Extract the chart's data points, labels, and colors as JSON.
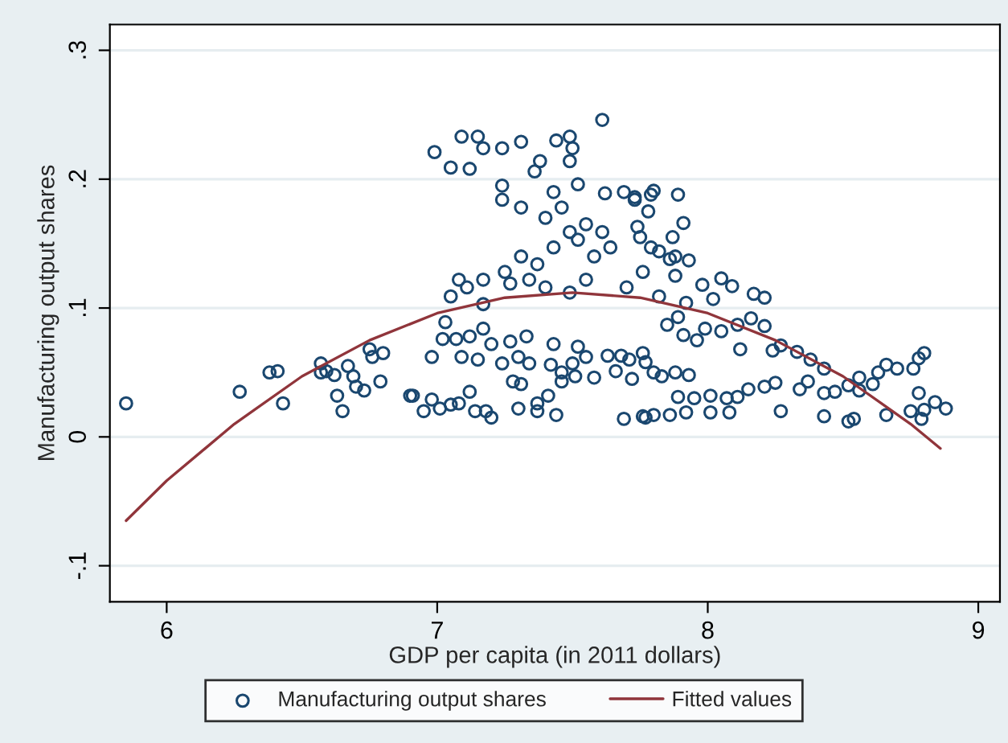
{
  "chart_data": {
    "type": "scatter",
    "xlabel": "GDP per capita (in 2011 dollars)",
    "ylabel": "Manufacturing output shares",
    "xlim": [
      5.79,
      9.08
    ],
    "xticks": [
      6,
      7,
      8,
      9
    ],
    "ylim": [
      -0.128,
      0.32
    ],
    "yticks": [
      {
        "value": -0.1,
        "label": "-.1"
      },
      0,
      {
        "value": 0.1,
        "label": ".1"
      },
      {
        "value": 0.2,
        "label": ".2"
      },
      {
        "value": 0.3,
        "label": ".3"
      }
    ],
    "grid": "y",
    "legend": "bottom",
    "marker": "circle",
    "series": [
      {
        "name": "Manufacturing output shares",
        "type": "scatter",
        "color": "#1a476f",
        "x": [
          5.85,
          6.27,
          6.38,
          6.41,
          6.43,
          6.57,
          6.57,
          6.59,
          6.62,
          6.63,
          6.65,
          6.67,
          6.69,
          6.7,
          6.73,
          6.75,
          6.76,
          6.79,
          6.8,
          6.9,
          6.99,
          7.09,
          7.15,
          7.17,
          7.05,
          7.12,
          7.24,
          7.31,
          7.38,
          7.44,
          7.49,
          7.61,
          7.5,
          7.24,
          7.24,
          7.36,
          7.49,
          7.62,
          7.69,
          7.73,
          7.79,
          7.4,
          7.46,
          7.49,
          7.52,
          7.55,
          7.58,
          7.61,
          7.64,
          7.43,
          7.37,
          7.31,
          7.34,
          7.25,
          7.17,
          7.11,
          7.08,
          7.05,
          7.17,
          7.27,
          7.4,
          7.49,
          7.55,
          7.7,
          7.76,
          7.82,
          7.88,
          7.74,
          7.79,
          7.31,
          7.43,
          7.52,
          7.73,
          7.8,
          7.89,
          7.78,
          7.91,
          7.75,
          7.87,
          7.82,
          7.86,
          7.93,
          7.88,
          7.98,
          8.05,
          8.09,
          8.17,
          8.21,
          8.02,
          7.92,
          7.89,
          7.85,
          7.91,
          7.99,
          8.05,
          8.11,
          8.16,
          8.21,
          7.96,
          8.12,
          8.24,
          8.27,
          8.33,
          8.38,
          8.43,
          7.76,
          7.77,
          7.71,
          7.72,
          7.8,
          7.83,
          7.88,
          7.93,
          7.89,
          7.95,
          8.01,
          8.07,
          8.11,
          8.15,
          8.21,
          8.25,
          8.34,
          8.37,
          8.43,
          8.47,
          8.52,
          8.56,
          8.56,
          8.61,
          8.63,
          8.66,
          8.7,
          8.76,
          8.78,
          8.8,
          8.78,
          8.84,
          8.88,
          8.75,
          8.8,
          8.79,
          8.66,
          8.54,
          8.52,
          8.43,
          8.27,
          8.08,
          8.01,
          7.92,
          7.86,
          7.8,
          7.77,
          7.03,
          7.02,
          7.07,
          7.12,
          7.17,
          7.2,
          7.27,
          7.33,
          7.3,
          7.24,
          7.34,
          7.43,
          7.42,
          7.46,
          7.5,
          7.52,
          7.55,
          7.63,
          7.68,
          6.98,
          7.09,
          7.15,
          6.91,
          6.95,
          6.98,
          7.01,
          7.05,
          7.08,
          7.12,
          7.14,
          7.18,
          7.2,
          7.28,
          7.31,
          7.3,
          7.37,
          7.37,
          7.41,
          7.44,
          7.46,
          7.51,
          7.58,
          7.66,
          7.69,
          7.76
        ],
        "values": [
          0.026,
          0.035,
          0.05,
          0.051,
          0.026,
          0.057,
          0.05,
          0.051,
          0.048,
          0.032,
          0.02,
          0.055,
          0.047,
          0.039,
          0.036,
          0.068,
          0.062,
          0.043,
          0.065,
          0.032,
          0.221,
          0.233,
          0.233,
          0.224,
          0.209,
          0.208,
          0.224,
          0.229,
          0.214,
          0.23,
          0.233,
          0.246,
          0.224,
          0.195,
          0.184,
          0.206,
          0.214,
          0.189,
          0.19,
          0.184,
          0.188,
          0.17,
          0.178,
          0.159,
          0.153,
          0.165,
          0.14,
          0.159,
          0.147,
          0.147,
          0.134,
          0.14,
          0.122,
          0.128,
          0.122,
          0.116,
          0.122,
          0.109,
          0.103,
          0.119,
          0.116,
          0.112,
          0.122,
          0.116,
          0.128,
          0.109,
          0.14,
          0.163,
          0.147,
          0.178,
          0.19,
          0.196,
          0.186,
          0.191,
          0.188,
          0.175,
          0.166,
          0.155,
          0.155,
          0.144,
          0.138,
          0.137,
          0.125,
          0.118,
          0.123,
          0.117,
          0.111,
          0.108,
          0.107,
          0.104,
          0.093,
          0.087,
          0.079,
          0.084,
          0.082,
          0.087,
          0.092,
          0.086,
          0.075,
          0.068,
          0.067,
          0.071,
          0.066,
          0.06,
          0.053,
          0.065,
          0.058,
          0.06,
          0.045,
          0.05,
          0.047,
          0.05,
          0.048,
          0.031,
          0.03,
          0.032,
          0.03,
          0.031,
          0.037,
          0.039,
          0.042,
          0.037,
          0.043,
          0.034,
          0.035,
          0.04,
          0.036,
          0.046,
          0.041,
          0.05,
          0.056,
          0.053,
          0.053,
          0.061,
          0.065,
          0.034,
          0.027,
          0.022,
          0.02,
          0.021,
          0.014,
          0.017,
          0.014,
          0.012,
          0.016,
          0.02,
          0.019,
          0.019,
          0.019,
          0.017,
          0.017,
          0.015,
          0.089,
          0.076,
          0.076,
          0.078,
          0.084,
          0.072,
          0.074,
          0.078,
          0.062,
          0.057,
          0.057,
          0.072,
          0.056,
          0.05,
          0.057,
          0.07,
          0.062,
          0.063,
          0.063,
          0.062,
          0.062,
          0.06,
          0.032,
          0.02,
          0.029,
          0.022,
          0.025,
          0.026,
          0.035,
          0.02,
          0.02,
          0.015,
          0.043,
          0.041,
          0.022,
          0.026,
          0.02,
          0.032,
          0.017,
          0.043,
          0.047,
          0.046,
          0.051,
          0.014,
          0.016
        ]
      },
      {
        "name": "Fitted values",
        "type": "line",
        "color": "#90353b",
        "marker": "none",
        "line_style": "solid",
        "x": [
          5.85,
          6,
          6.25,
          6.5,
          6.75,
          7,
          7.25,
          7.5,
          7.75,
          8,
          8.25,
          8.5,
          8.75,
          8.86
        ],
        "values": [
          -0.065,
          -0.034,
          0.01,
          0.047,
          0.075,
          0.096,
          0.108,
          0.112,
          0.108,
          0.096,
          0.075,
          0.047,
          0.01,
          -0.009
        ]
      }
    ]
  }
}
